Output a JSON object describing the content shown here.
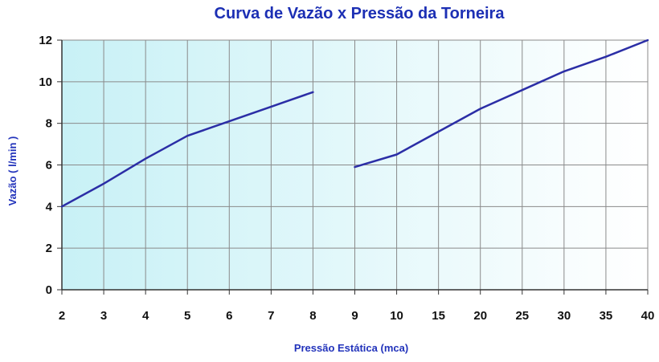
{
  "chart_data": {
    "type": "line",
    "title": "Curva de Vazão x Pressão da Torneira",
    "xlabel": "Pressão Estática (mca)",
    "ylabel": "Vazão ( l/min )",
    "categories": [
      "2",
      "3",
      "4",
      "5",
      "6",
      "7",
      "8",
      "9",
      "10",
      "15",
      "20",
      "25",
      "30",
      "35",
      "40"
    ],
    "ylim": [
      0,
      12
    ],
    "yticks": [
      0,
      2,
      4,
      6,
      8,
      10,
      12
    ],
    "grid": true,
    "legend": "none",
    "series": [
      {
        "segments": [
          [
            [
              2,
              4.0
            ],
            [
              3,
              5.1
            ],
            [
              4,
              6.3
            ],
            [
              5,
              7.4
            ],
            [
              6,
              8.1
            ],
            [
              7,
              8.8
            ],
            [
              8,
              9.5
            ]
          ],
          [
            [
              9,
              5.9
            ],
            [
              10,
              6.5
            ],
            [
              15,
              7.6
            ],
            [
              20,
              8.7
            ],
            [
              25,
              9.6
            ],
            [
              30,
              10.5
            ],
            [
              35,
              11.2
            ],
            [
              40,
              12.0
            ]
          ]
        ]
      }
    ]
  },
  "colors": {
    "title": "#1c2fb4",
    "line": "#2b2ea6",
    "axis_title": "#2233bb",
    "grid": "#8a8a8a",
    "plot_bg_left": "#c8f1f6",
    "plot_bg_right": "#ffffff"
  }
}
